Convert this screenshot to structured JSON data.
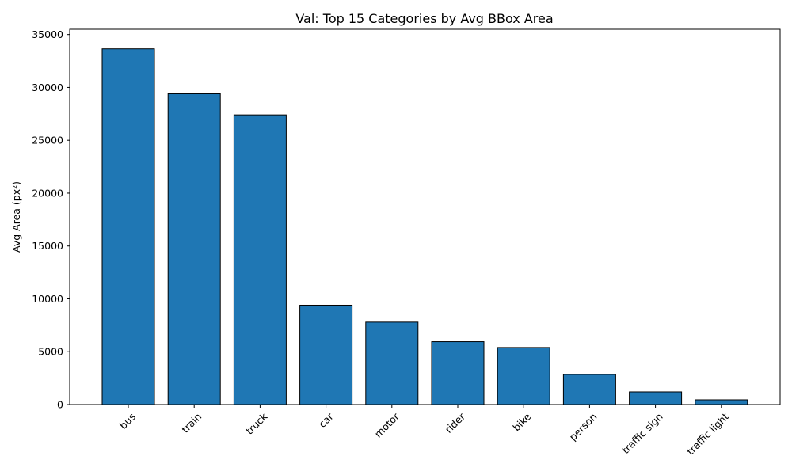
{
  "chart_data": {
    "type": "bar",
    "title": "Val: Top 15 Categories by Avg BBox Area",
    "xlabel": "",
    "ylabel": "Avg Area (px²)",
    "categories": [
      "bus",
      "train",
      "truck",
      "car",
      "motor",
      "rider",
      "bike",
      "person",
      "traffic sign",
      "traffic light"
    ],
    "values": [
      33650,
      29400,
      27400,
      9400,
      7800,
      5950,
      5400,
      2850,
      1200,
      450
    ],
    "ylim": [
      0,
      35500
    ],
    "yticks": [
      0,
      5000,
      10000,
      15000,
      20000,
      25000,
      30000,
      35000
    ],
    "grid": false,
    "bar_color": "#1f77b4",
    "edge_color": "#000000"
  }
}
